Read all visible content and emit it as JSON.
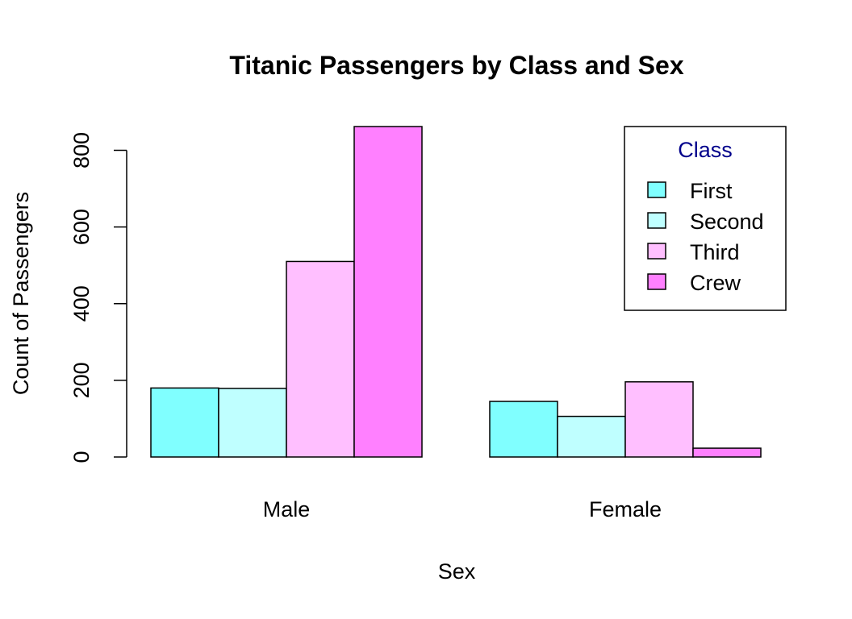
{
  "chart_data": {
    "type": "bar",
    "title": "Titanic Passengers by Class and Sex",
    "xlabel": "Sex",
    "ylabel": "Count of Passengers",
    "categories": [
      "Male",
      "Female"
    ],
    "series": [
      {
        "name": "First",
        "color": "#80FFFF",
        "values": [
          180,
          145
        ]
      },
      {
        "name": "Second",
        "color": "#BFFFFF",
        "values": [
          179,
          106
        ]
      },
      {
        "name": "Third",
        "color": "#FFBFFF",
        "values": [
          510,
          196
        ]
      },
      {
        "name": "Crew",
        "color": "#FF80FF",
        "values": [
          862,
          23
        ]
      }
    ],
    "yticks": [
      "0",
      "200",
      "400",
      "600",
      "800"
    ],
    "ylim": [
      0,
      862
    ],
    "grid": false,
    "legend": {
      "title": "Class",
      "title_color": "#00008B",
      "position": "top-right"
    }
  }
}
